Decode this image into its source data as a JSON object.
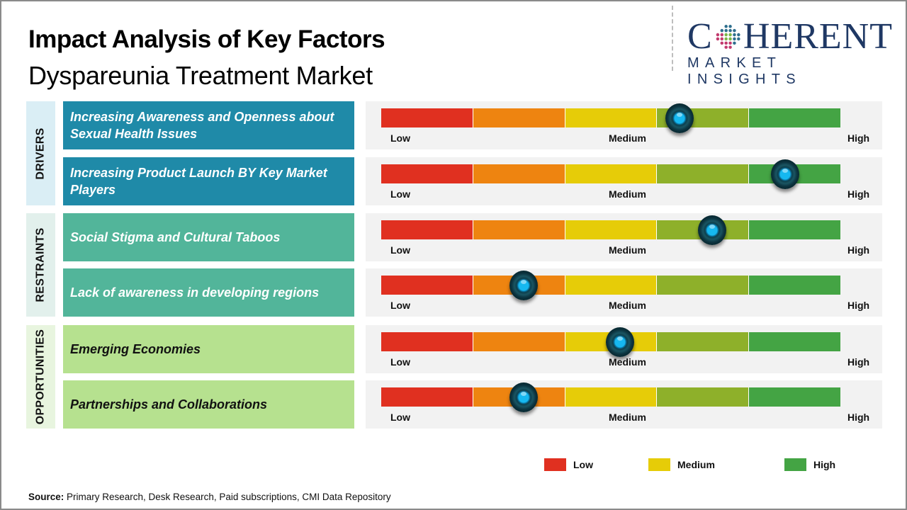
{
  "header": {
    "title": "Impact Analysis of Key Factors",
    "subtitle": "Dyspareunia Treatment Market"
  },
  "logo": {
    "main_prefix": "C",
    "main_suffix": "HERENT",
    "sub": "MARKET INSIGHTS",
    "icon": "globe-dots-icon"
  },
  "scale": {
    "segment_colors": [
      "#e03020",
      "#ee8410",
      "#e6cc08",
      "#8eb02a",
      "#44a444"
    ],
    "tick_labels": {
      "low": "Low",
      "medium": "Medium",
      "high": "High"
    }
  },
  "chart_data": {
    "type": "table",
    "title": "Impact Analysis of Key Factors - Dyspareunia Treatment Market",
    "scale": [
      "Low",
      "Medium",
      "High"
    ],
    "value_range": [
      0,
      1
    ],
    "groups": [
      {
        "name": "DRIVERS",
        "color": "#1f8aa8",
        "label_bg": "#daeef5",
        "text_color": "#ffffff",
        "factors": [
          {
            "label": "Increasing Awareness and Openness about Sexual Health Issues",
            "impact": 0.65,
            "level": "Medium-High"
          },
          {
            "label": "Increasing Product Launch BY Key Market Players",
            "impact": 0.88,
            "level": "High"
          }
        ]
      },
      {
        "name": "RESTRAINTS",
        "color": "#52b59a",
        "label_bg": "#e2f0ec",
        "text_color": "#ffffff",
        "factors": [
          {
            "label": "Social Stigma and Cultural Taboos",
            "impact": 0.72,
            "level": "Medium-High"
          },
          {
            "label": "Lack of awareness in developing regions",
            "impact": 0.31,
            "level": "Low-Medium"
          }
        ]
      },
      {
        "name": "OPPORTUNITIES",
        "color": "#b6e18f",
        "label_bg": "#e8f5df",
        "text_color": "#111111",
        "factors": [
          {
            "label": "Emerging Economies",
            "impact": 0.52,
            "level": "Medium"
          },
          {
            "label": "Partnerships and Collaborations",
            "impact": 0.31,
            "level": "Low-Medium"
          }
        ]
      }
    ],
    "legend": [
      {
        "label": "Low",
        "color": "#e03020"
      },
      {
        "label": "Medium",
        "color": "#e6cc08"
      },
      {
        "label": "High",
        "color": "#44a444"
      }
    ]
  },
  "legend": [
    {
      "label": "Low",
      "color": "#e03020"
    },
    {
      "label": "Medium",
      "color": "#e6cc08"
    },
    {
      "label": "High",
      "color": "#44a444"
    }
  ],
  "footer": {
    "source_label": "Source:",
    "source_text": " Primary Research, Desk Research, Paid subscriptions, CMI Data Repository"
  }
}
